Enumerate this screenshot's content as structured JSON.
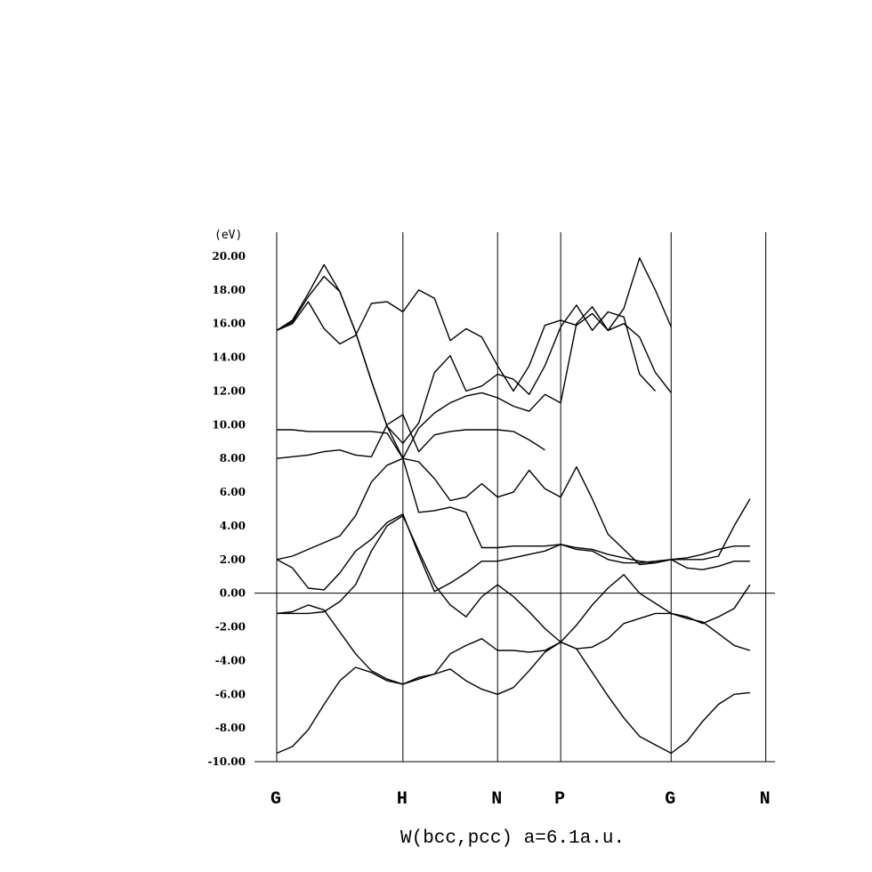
{
  "chart_data": {
    "type": "line",
    "title": "W(bcc,pcc) a=6.1a.u.",
    "ylabel": "(eV)",
    "ylim": [
      -10,
      20
    ],
    "yticks": [
      "20.00",
      "18.00",
      "16.00",
      "14.00",
      "12.00",
      "10.00",
      "8.00",
      "6.00",
      "4.00",
      "2.00",
      "0.00",
      "-2.00",
      "-4.00",
      "-6.00",
      "-8.00",
      "-10.00"
    ],
    "ytick_values": [
      20,
      18,
      16,
      14,
      12,
      10,
      8,
      6,
      4,
      2,
      0,
      -2,
      -4,
      -6,
      -8,
      -10
    ],
    "xlim": [
      0,
      32
    ],
    "kpoints": [
      {
        "label": "G",
        "x": 0
      },
      {
        "label": "H",
        "x": 8
      },
      {
        "label": "N",
        "x": 14
      },
      {
        "label": "P",
        "x": 18
      },
      {
        "label": "G",
        "x": 25
      },
      {
        "label": "N",
        "x": 31
      }
    ],
    "fermi_level": 0,
    "grid": "vertical lines at k-points",
    "series": [
      {
        "values": [
          [
            0,
            -9.5
          ],
          [
            1,
            -9.1
          ],
          [
            2,
            -8.1
          ],
          [
            3,
            -6.6
          ],
          [
            4,
            -5.2
          ],
          [
            5,
            -4.4
          ],
          [
            6,
            -4.7
          ],
          [
            7,
            -5.2
          ],
          [
            8,
            -5.4
          ],
          [
            9,
            -5.0
          ],
          [
            10,
            -4.8
          ],
          [
            11,
            -4.5
          ],
          [
            12,
            -5.2
          ],
          [
            13,
            -5.7
          ],
          [
            14,
            -6.0
          ],
          [
            15,
            -5.6
          ],
          [
            16,
            -4.6
          ],
          [
            17,
            -3.5
          ],
          [
            18,
            -2.9
          ],
          [
            19,
            -3.3
          ],
          [
            20,
            -4.7
          ],
          [
            21,
            -6.1
          ],
          [
            22,
            -7.4
          ],
          [
            23,
            -8.5
          ],
          [
            24,
            -9.0
          ],
          [
            25,
            -9.5
          ],
          [
            26,
            -8.8
          ],
          [
            27,
            -7.6
          ],
          [
            28,
            -6.6
          ],
          [
            29,
            -6.0
          ],
          [
            30,
            -5.9
          ]
        ]
      },
      {
        "values": [
          [
            0,
            -1.2
          ],
          [
            1,
            -1.2
          ],
          [
            2,
            -1.2
          ],
          [
            3,
            -1.1
          ],
          [
            4,
            -0.5
          ],
          [
            5,
            0.5
          ],
          [
            6,
            2.5
          ],
          [
            7,
            4.0
          ],
          [
            8,
            4.6
          ],
          [
            9,
            2.5
          ],
          [
            10,
            0.5
          ],
          [
            11,
            -0.7
          ],
          [
            12,
            -1.4
          ],
          [
            13,
            -0.2
          ],
          [
            14,
            0.5
          ],
          [
            15,
            -0.2
          ],
          [
            16,
            -1.1
          ],
          [
            17,
            -2.1
          ],
          [
            18,
            -2.9
          ],
          [
            19,
            -3.3
          ],
          [
            20,
            -3.2
          ],
          [
            21,
            -2.7
          ],
          [
            22,
            -1.8
          ],
          [
            23,
            -1.5
          ],
          [
            24,
            -1.2
          ],
          [
            25,
            -1.2
          ],
          [
            26,
            -1.4
          ],
          [
            27,
            -1.8
          ],
          [
            28,
            -1.4
          ],
          [
            29,
            -0.9
          ],
          [
            30,
            0.5
          ]
        ]
      },
      {
        "values": [
          [
            0,
            -1.2
          ],
          [
            1,
            -1.1
          ],
          [
            2,
            -0.7
          ],
          [
            3,
            -1.0
          ],
          [
            4,
            -2.3
          ],
          [
            5,
            -3.6
          ],
          [
            6,
            -4.6
          ],
          [
            7,
            -5.1
          ],
          [
            8,
            -5.4
          ],
          [
            9,
            -5.1
          ],
          [
            10,
            -4.8
          ],
          [
            11,
            -3.6
          ],
          [
            12,
            -3.1
          ],
          [
            13,
            -2.7
          ],
          [
            14,
            -3.4
          ],
          [
            15,
            -3.4
          ],
          [
            16,
            -3.5
          ],
          [
            17,
            -3.4
          ],
          [
            18,
            -2.9
          ],
          [
            19,
            -1.9
          ],
          [
            20,
            -0.7
          ],
          [
            21,
            0.3
          ],
          [
            22,
            1.1
          ],
          [
            23,
            0.0
          ],
          [
            24,
            -0.6
          ],
          [
            25,
            -1.2
          ],
          [
            26,
            -1.5
          ],
          [
            27,
            -1.7
          ],
          [
            28,
            -2.4
          ],
          [
            29,
            -3.1
          ],
          [
            30,
            -3.4
          ]
        ]
      },
      {
        "values": [
          [
            0,
            2.0
          ],
          [
            1,
            1.5
          ],
          [
            2,
            0.3
          ],
          [
            3,
            0.2
          ],
          [
            4,
            1.2
          ],
          [
            5,
            2.5
          ],
          [
            6,
            3.2
          ],
          [
            7,
            4.2
          ],
          [
            8,
            4.7
          ],
          [
            9,
            2.3
          ],
          [
            10,
            0.1
          ],
          [
            11,
            0.6
          ],
          [
            12,
            1.2
          ],
          [
            13,
            1.9
          ],
          [
            14,
            1.9
          ],
          [
            15,
            2.1
          ],
          [
            16,
            2.3
          ],
          [
            17,
            2.5
          ],
          [
            18,
            2.9
          ],
          [
            19,
            2.7
          ],
          [
            20,
            2.6
          ],
          [
            21,
            2.3
          ],
          [
            22,
            2.1
          ],
          [
            23,
            1.9
          ],
          [
            24,
            1.8
          ],
          [
            25,
            2.0
          ],
          [
            26,
            1.5
          ],
          [
            27,
            1.4
          ],
          [
            28,
            1.6
          ],
          [
            29,
            1.9
          ],
          [
            30,
            1.9
          ]
        ]
      },
      {
        "values": [
          [
            0,
            2.0
          ],
          [
            1,
            2.2
          ],
          [
            2,
            2.6
          ],
          [
            3,
            3.0
          ],
          [
            4,
            3.4
          ],
          [
            5,
            4.6
          ],
          [
            6,
            6.6
          ],
          [
            7,
            7.6
          ],
          [
            8,
            8.0
          ],
          [
            9,
            4.8
          ],
          [
            10,
            4.9
          ],
          [
            11,
            5.1
          ],
          [
            12,
            4.8
          ],
          [
            13,
            2.7
          ],
          [
            14,
            2.7
          ],
          [
            15,
            2.8
          ],
          [
            16,
            2.8
          ],
          [
            17,
            2.8
          ],
          [
            18,
            2.9
          ],
          [
            19,
            2.6
          ],
          [
            20,
            2.5
          ],
          [
            21,
            2.0
          ],
          [
            22,
            1.8
          ],
          [
            23,
            1.8
          ],
          [
            24,
            1.9
          ],
          [
            25,
            2.0
          ],
          [
            26,
            2.1
          ],
          [
            27,
            2.3
          ],
          [
            28,
            2.6
          ],
          [
            29,
            2.8
          ],
          [
            30,
            2.8
          ]
        ]
      },
      {
        "values": [
          [
            0,
            9.7
          ],
          [
            1,
            9.7
          ],
          [
            2,
            9.6
          ],
          [
            3,
            9.6
          ],
          [
            4,
            9.6
          ],
          [
            5,
            9.6
          ],
          [
            6,
            9.6
          ],
          [
            7,
            9.5
          ],
          [
            8,
            8.0
          ],
          [
            9,
            7.8
          ],
          [
            10,
            6.8
          ],
          [
            11,
            5.5
          ],
          [
            12,
            5.7
          ],
          [
            13,
            6.5
          ],
          [
            14,
            5.7
          ],
          [
            15,
            6.0
          ],
          [
            16,
            7.3
          ],
          [
            17,
            6.2
          ],
          [
            18,
            5.7
          ],
          [
            19,
            7.5
          ],
          [
            20,
            5.6
          ],
          [
            21,
            3.5
          ],
          [
            22,
            2.6
          ],
          [
            23,
            1.7
          ],
          [
            24,
            1.8
          ],
          [
            25,
            2.0
          ],
          [
            26,
            2.0
          ],
          [
            27,
            2.0
          ],
          [
            28,
            2.2
          ],
          [
            29,
            4.0
          ],
          [
            30,
            5.6
          ]
        ]
      },
      {
        "values": [
          [
            0,
            15.6
          ],
          [
            1,
            16.0
          ],
          [
            2,
            17.3
          ],
          [
            3,
            15.7
          ],
          [
            4,
            14.8
          ],
          [
            5,
            15.3
          ],
          [
            6,
            17.2
          ],
          [
            7,
            17.3
          ],
          [
            8,
            16.7
          ],
          [
            9,
            18.0
          ],
          [
            10,
            17.5
          ],
          [
            11,
            15.0
          ],
          [
            12,
            15.7
          ],
          [
            13,
            15.2
          ],
          [
            14,
            13.5
          ],
          [
            15,
            12.0
          ],
          [
            16,
            13.5
          ],
          [
            17,
            15.9
          ],
          [
            18,
            16.2
          ],
          [
            19,
            15.9
          ],
          [
            20,
            16.6
          ],
          [
            21,
            15.6
          ],
          [
            22,
            16.0
          ],
          [
            23,
            15.2
          ],
          [
            24,
            13.1
          ],
          [
            25,
            11.9
          ]
        ]
      },
      {
        "values": [
          [
            0,
            15.6
          ],
          [
            1,
            16.1
          ],
          [
            2,
            17.6
          ],
          [
            3,
            18.8
          ],
          [
            4,
            17.9
          ],
          [
            5,
            15.5
          ],
          [
            6,
            12.6
          ],
          [
            7,
            9.9
          ],
          [
            8,
            8.0
          ],
          [
            9,
            9.8
          ],
          [
            10,
            10.7
          ],
          [
            11,
            11.3
          ],
          [
            12,
            11.7
          ],
          [
            13,
            11.9
          ],
          [
            14,
            11.6
          ],
          [
            15,
            11.1
          ],
          [
            16,
            10.8
          ],
          [
            17,
            11.8
          ],
          [
            18,
            11.3
          ],
          [
            19,
            16.0
          ],
          [
            20,
            17.0
          ],
          [
            21,
            15.6
          ],
          [
            22,
            16.9
          ],
          [
            23,
            19.9
          ],
          [
            24,
            18.0
          ],
          [
            25,
            15.8
          ]
        ]
      },
      {
        "values": [
          [
            0,
            15.6
          ],
          [
            1,
            16.2
          ],
          [
            2,
            17.8
          ],
          [
            3,
            19.5
          ],
          [
            4,
            17.9
          ],
          [
            5,
            15.5
          ],
          [
            6,
            12.6
          ],
          [
            7,
            9.9
          ],
          [
            8,
            8.9
          ],
          [
            9,
            10.1
          ],
          [
            10,
            13.1
          ],
          [
            11,
            14.1
          ],
          [
            12,
            12.0
          ],
          [
            13,
            12.3
          ],
          [
            14,
            13.0
          ],
          [
            15,
            12.7
          ],
          [
            16,
            11.8
          ],
          [
            17,
            13.5
          ],
          [
            18,
            15.8
          ],
          [
            19,
            17.1
          ],
          [
            20,
            15.6
          ],
          [
            21,
            16.7
          ],
          [
            22,
            16.4
          ],
          [
            23,
            13.0
          ],
          [
            24,
            12.0
          ]
        ]
      },
      {
        "values": [
          [
            0,
            8.0
          ],
          [
            1,
            8.1
          ],
          [
            2,
            8.2
          ],
          [
            3,
            8.4
          ],
          [
            4,
            8.5
          ],
          [
            5,
            8.2
          ],
          [
            6,
            8.1
          ],
          [
            7,
            10.0
          ],
          [
            8,
            10.6
          ],
          [
            9,
            8.4
          ],
          [
            10,
            9.4
          ],
          [
            11,
            9.6
          ],
          [
            12,
            9.7
          ],
          [
            13,
            9.7
          ],
          [
            14,
            9.7
          ],
          [
            15,
            9.6
          ],
          [
            16,
            9.1
          ],
          [
            17,
            8.5
          ]
        ]
      }
    ]
  }
}
